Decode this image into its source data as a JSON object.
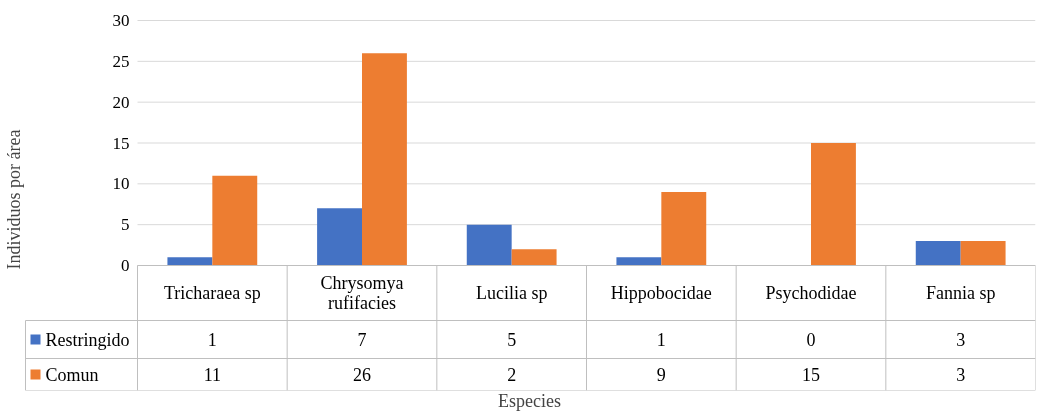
{
  "chart_data": {
    "type": "bar",
    "xlabel": "Especies",
    "ylabel": "Individuos por área",
    "categories": [
      "Tricharaea sp",
      "Chrysomya\nrufifacies",
      "Lucilia sp",
      "Hippobocidae",
      "Psychodidae",
      "Fannia sp"
    ],
    "series": [
      {
        "name": "Restringido",
        "color": "#4472c4",
        "values": [
          1,
          7,
          5,
          1,
          0,
          3
        ]
      },
      {
        "name": "Comun",
        "color": "#ed7d31",
        "values": [
          11,
          26,
          2,
          9,
          15,
          3
        ]
      }
    ],
    "ylim": [
      0,
      30
    ],
    "yticks": [
      0,
      5,
      10,
      15,
      20,
      25,
      30
    ],
    "grid": "y",
    "legend": "bottom",
    "data_labels": true
  }
}
